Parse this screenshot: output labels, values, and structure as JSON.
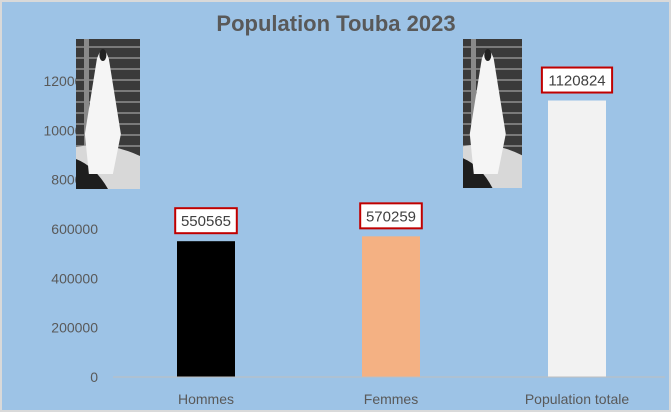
{
  "chart_data": {
    "type": "bar",
    "title": "Population Touba 2023",
    "categories": [
      "Hommes",
      "Femmes",
      "Population totale"
    ],
    "values": [
      550565,
      570259,
      1120824
    ],
    "data_labels": [
      "550565",
      "570259",
      "1120824"
    ],
    "bar_colors": [
      "#000000",
      "#f4b183",
      "#f2f2f2"
    ],
    "ylim": [
      0,
      1200000
    ],
    "yticks": [
      0,
      200000,
      400000,
      600000,
      800000,
      1000000,
      1200000
    ],
    "ytick_labels": [
      "0",
      "200000",
      "400000",
      "600000",
      "800000",
      "1000000",
      "1200000"
    ],
    "xlabel": "",
    "ylabel": "",
    "grid": false,
    "legend": "none",
    "colors": {
      "background": "#9dc3e6",
      "text": "#595959",
      "label_border": "#c00000",
      "label_fill": "#ffffff"
    },
    "images": [
      "photo-portrait-white-robed-figure",
      "photo-portrait-white-robed-figure"
    ]
  }
}
